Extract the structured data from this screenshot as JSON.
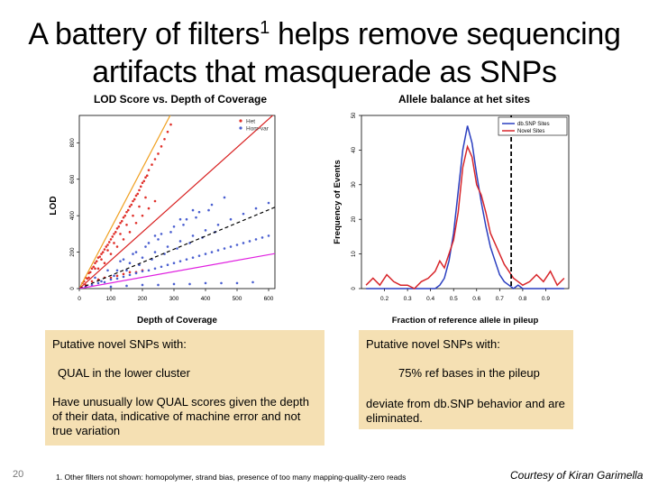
{
  "title": {
    "line1_before": "A battery of filters",
    "line1_sup": "1",
    "line1_after": " helps remove sequencing",
    "line2": "artifacts that masquerade as SNPs"
  },
  "left_box": {
    "heading": "Putative novel SNPs with:",
    "criterion": "QUAL in the lower cluster",
    "body": "Have unusually low QUAL scores given the depth of their data, indicative of machine error and not true variation"
  },
  "right_box": {
    "heading": "Putative novel SNPs with:",
    "criterion": "75% ref bases in the pileup",
    "body": "deviate from db.SNP behavior and are eliminated."
  },
  "slide_number": "20",
  "footnote": "1. Other filters not shown: homopolymer, strand bias, presence of too many mapping-quality-zero reads",
  "courtesy": "Courtesy of Kiran Garimella",
  "colors": {
    "box_bg": "#f5e0b3",
    "het": "#e0302a",
    "homvar": "#4a5fd0",
    "dbsnp": "#2b3fc0",
    "novel": "#d8262b"
  },
  "chart_data": [
    {
      "type": "scatter",
      "title": "LOD Score vs. Depth of Coverage",
      "xlabel": "Depth of Coverage",
      "ylabel": "LOD",
      "xlim": [
        0,
        620
      ],
      "ylim": [
        0,
        950
      ],
      "xticks": [
        "0",
        "100",
        "200",
        "300",
        "400",
        "500",
        "600"
      ],
      "yticks": [
        "0",
        "200",
        "400",
        "600",
        "800"
      ],
      "legend": [
        "Het",
        "Hom-var"
      ],
      "legend_position": "top-right",
      "series": [
        {
          "name": "Het",
          "color": "#e0302a",
          "points": [
            [
              10,
              30
            ],
            [
              15,
              40
            ],
            [
              20,
              60
            ],
            [
              25,
              55
            ],
            [
              30,
              85
            ],
            [
              35,
              90
            ],
            [
              40,
              110
            ],
            [
              45,
              120
            ],
            [
              50,
              140
            ],
            [
              55,
              150
            ],
            [
              60,
              170
            ],
            [
              65,
              175
            ],
            [
              70,
              190
            ],
            [
              75,
              200
            ],
            [
              80,
              215
            ],
            [
              85,
              230
            ],
            [
              90,
              240
            ],
            [
              95,
              255
            ],
            [
              100,
              270
            ],
            [
              105,
              285
            ],
            [
              110,
              300
            ],
            [
              115,
              310
            ],
            [
              120,
              330
            ],
            [
              125,
              340
            ],
            [
              130,
              360
            ],
            [
              135,
              370
            ],
            [
              140,
              390
            ],
            [
              145,
              400
            ],
            [
              150,
              420
            ],
            [
              155,
              430
            ],
            [
              160,
              450
            ],
            [
              165,
              460
            ],
            [
              170,
              480
            ],
            [
              175,
              490
            ],
            [
              180,
              510
            ],
            [
              185,
              520
            ],
            [
              190,
              540
            ],
            [
              195,
              560
            ],
            [
              200,
              580
            ],
            [
              205,
              590
            ],
            [
              210,
              610
            ],
            [
              215,
              620
            ],
            [
              220,
              650
            ],
            [
              230,
              680
            ],
            [
              240,
              710
            ],
            [
              250,
              740
            ],
            [
              260,
              780
            ],
            [
              270,
              820
            ],
            [
              280,
              860
            ],
            [
              290,
              900
            ],
            [
              30,
              60
            ],
            [
              50,
              110
            ],
            [
              70,
              160
            ],
            [
              90,
              210
            ],
            [
              110,
              250
            ],
            [
              130,
              300
            ],
            [
              150,
              350
            ],
            [
              170,
              400
            ],
            [
              190,
              450
            ],
            [
              210,
              500
            ],
            [
              60,
              110
            ],
            [
              80,
              140
            ],
            [
              100,
              190
            ],
            [
              120,
              230
            ],
            [
              140,
              270
            ],
            [
              160,
              310
            ],
            [
              180,
              360
            ],
            [
              200,
              400
            ],
            [
              220,
              440
            ],
            [
              240,
              480
            ],
            [
              20,
              20
            ],
            [
              40,
              40
            ],
            [
              60,
              50
            ],
            [
              80,
              60
            ],
            [
              100,
              60
            ],
            [
              120,
              70
            ],
            [
              140,
              80
            ],
            [
              160,
              90
            ],
            [
              180,
              90
            ],
            [
              200,
              100
            ]
          ]
        },
        {
          "name": "Hom-var",
          "color": "#4a5fd0",
          "points": [
            [
              20,
              10
            ],
            [
              40,
              20
            ],
            [
              60,
              30
            ],
            [
              80,
              35
            ],
            [
              100,
              50
            ],
            [
              120,
              55
            ],
            [
              140,
              65
            ],
            [
              160,
              75
            ],
            [
              180,
              85
            ],
            [
              200,
              95
            ],
            [
              220,
              100
            ],
            [
              240,
              110
            ],
            [
              260,
              120
            ],
            [
              280,
              130
            ],
            [
              300,
              140
            ],
            [
              320,
              150
            ],
            [
              340,
              160
            ],
            [
              360,
              170
            ],
            [
              380,
              180
            ],
            [
              400,
              190
            ],
            [
              420,
              200
            ],
            [
              440,
              210
            ],
            [
              460,
              220
            ],
            [
              480,
              230
            ],
            [
              500,
              240
            ],
            [
              520,
              250
            ],
            [
              540,
              260
            ],
            [
              560,
              270
            ],
            [
              580,
              280
            ],
            [
              600,
              290
            ],
            [
              50,
              60
            ],
            [
              90,
              100
            ],
            [
              130,
              150
            ],
            [
              170,
              190
            ],
            [
              210,
              230
            ],
            [
              250,
              270
            ],
            [
              290,
              310
            ],
            [
              330,
              350
            ],
            [
              370,
              390
            ],
            [
              410,
              430
            ],
            [
              70,
              40
            ],
            [
              110,
              70
            ],
            [
              150,
              100
            ],
            [
              190,
              130
            ],
            [
              230,
              160
            ],
            [
              270,
              190
            ],
            [
              310,
              220
            ],
            [
              350,
              250
            ],
            [
              390,
              280
            ],
            [
              430,
              310
            ],
            [
              100,
              10
            ],
            [
              150,
              15
            ],
            [
              200,
              20
            ],
            [
              250,
              20
            ],
            [
              300,
              25
            ],
            [
              350,
              25
            ],
            [
              400,
              30
            ],
            [
              450,
              30
            ],
            [
              500,
              30
            ],
            [
              550,
              35
            ],
            [
              180,
              200
            ],
            [
              220,
              250
            ],
            [
              260,
              300
            ],
            [
              300,
              340
            ],
            [
              340,
              380
            ],
            [
              380,
              420
            ],
            [
              420,
              460
            ],
            [
              460,
              500
            ],
            [
              140,
              160
            ],
            [
              240,
              290
            ],
            [
              320,
              380
            ],
            [
              360,
              430
            ],
            [
              120,
              100
            ],
            [
              160,
              140
            ],
            [
              200,
              170
            ],
            [
              240,
              200
            ],
            [
              280,
              230
            ],
            [
              320,
              260
            ],
            [
              360,
              290
            ],
            [
              400,
              320
            ],
            [
              440,
              350
            ],
            [
              480,
              380
            ],
            [
              520,
              410
            ],
            [
              560,
              440
            ],
            [
              600,
              470
            ]
          ]
        }
      ],
      "lines": [
        {
          "color": "#f0a020",
          "slope": 3.3,
          "intercept": 0
        },
        {
          "color": "#d82020",
          "slope": 1.55,
          "intercept": 0
        },
        {
          "color": "#000000",
          "slope": 0.72,
          "intercept": 0,
          "dashed": true
        },
        {
          "color": "#e020e0",
          "slope": 0.31,
          "intercept": 0
        }
      ]
    },
    {
      "type": "line",
      "title": "Allele balance at het sites",
      "xlabel": "Fraction of reference allele in pileup",
      "ylabel": "Frequency of Events",
      "xlim": [
        0.1,
        1.0
      ],
      "ylim": [
        0,
        50
      ],
      "xticks": [
        "0.2",
        "0.3",
        "0.4",
        "0.5",
        "0.6",
        "0.7",
        "0.8",
        "0.9"
      ],
      "yticks": [
        "0",
        "10",
        "20",
        "30",
        "40",
        "50"
      ],
      "legend": [
        "db.SNP Sites",
        "Novel Sites"
      ],
      "legend_position": "top-right",
      "threshold": 0.75,
      "x": [
        0.12,
        0.15,
        0.18,
        0.21,
        0.24,
        0.27,
        0.3,
        0.33,
        0.36,
        0.39,
        0.42,
        0.44,
        0.46,
        0.48,
        0.5,
        0.52,
        0.54,
        0.56,
        0.58,
        0.6,
        0.62,
        0.64,
        0.66,
        0.68,
        0.7,
        0.72,
        0.74,
        0.76,
        0.78,
        0.8,
        0.83,
        0.86,
        0.89,
        0.92,
        0.95,
        0.98
      ],
      "series": [
        {
          "name": "db.SNP Sites",
          "color": "#2b3fc0",
          "values": [
            0,
            0,
            0,
            0,
            0,
            0,
            0,
            0,
            0,
            0,
            0,
            1,
            3,
            8,
            16,
            28,
            40,
            47,
            42,
            33,
            25,
            18,
            12,
            8,
            4,
            2,
            1,
            0,
            1,
            0,
            0,
            0,
            0,
            0,
            0,
            0
          ]
        },
        {
          "name": "Novel Sites",
          "color": "#d8262b",
          "values": [
            1,
            3,
            1,
            4,
            2,
            1,
            1,
            0,
            2,
            3,
            5,
            8,
            6,
            10,
            14,
            22,
            35,
            41,
            38,
            30,
            27,
            22,
            16,
            13,
            10,
            7,
            5,
            3,
            2,
            1,
            2,
            4,
            2,
            5,
            1,
            3
          ]
        }
      ]
    }
  ]
}
